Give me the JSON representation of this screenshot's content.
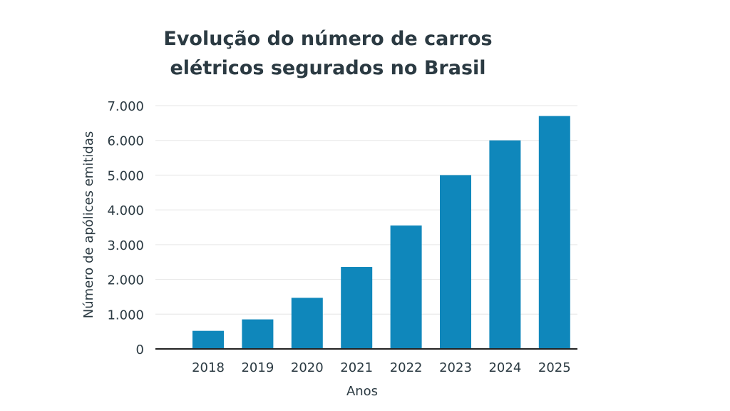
{
  "chart_data": {
    "type": "bar",
    "title_line1": "Evolução do número de carros",
    "title_line2": "elétricos segurados no Brasil",
    "xlabel": "Anos",
    "ylabel": "Número de apólices emitidas",
    "categories": [
      "2018",
      "2019",
      "2020",
      "2021",
      "2022",
      "2023",
      "2024",
      "2025"
    ],
    "values": [
      520,
      850,
      1470,
      2360,
      3550,
      5000,
      6000,
      6700
    ],
    "ylim": [
      0,
      7000
    ],
    "yticks": [
      0,
      1000,
      2000,
      3000,
      4000,
      5000,
      6000,
      7000
    ],
    "ytick_labels": [
      "0",
      "1.000",
      "2.000",
      "3.000",
      "4.000",
      "5.000",
      "6.000",
      "7.000"
    ],
    "grid": true,
    "bar_color": "#0f87bb",
    "grid_color": "#e6e6e6",
    "text_color": "#2b3a42"
  }
}
